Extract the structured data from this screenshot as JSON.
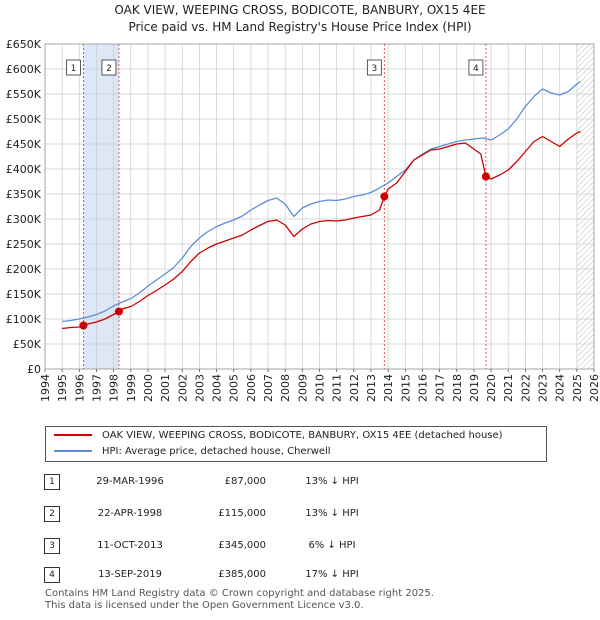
{
  "header": {
    "title_line1": "OAK VIEW, WEEPING CROSS, BODICOTE, BANBURY, OX15 4EE",
    "title_line2": "Price paid vs. HM Land Registry's House Price Index (HPI)"
  },
  "colors": {
    "property": "#cc0000",
    "hpi": "#5b8ed6",
    "band": "#dde7f7",
    "grid": "#cccccc"
  },
  "chart_data": {
    "type": "line",
    "title": "Price paid vs. HM Land Registry's House Price Index (HPI)",
    "xlabel": "",
    "ylabel": "",
    "xlim": [
      1994,
      2026
    ],
    "ylim": [
      0,
      650000
    ],
    "y_ticks": [
      0,
      50000,
      100000,
      150000,
      200000,
      250000,
      300000,
      350000,
      400000,
      450000,
      500000,
      550000,
      600000,
      650000
    ],
    "y_tick_labels": [
      "£0",
      "£50K",
      "£100K",
      "£150K",
      "£200K",
      "£250K",
      "£300K",
      "£350K",
      "£400K",
      "£450K",
      "£500K",
      "£550K",
      "£600K",
      "£650K"
    ],
    "x_ticks": [
      1994,
      1995,
      1996,
      1997,
      1998,
      1999,
      2000,
      2001,
      2002,
      2003,
      2004,
      2005,
      2006,
      2007,
      2008,
      2009,
      2010,
      2011,
      2012,
      2013,
      2014,
      2015,
      2016,
      2017,
      2018,
      2019,
      2020,
      2021,
      2022,
      2023,
      2024,
      2025,
      2026
    ],
    "x_tick_labels": [
      "1994",
      "1995",
      "1996",
      "1997",
      "1998",
      "1999",
      "2000",
      "2001",
      "2002",
      "2003",
      "2004",
      "2005",
      "2006",
      "2007",
      "2008",
      "2009",
      "2010",
      "2011",
      "2012",
      "2013",
      "2014",
      "2015",
      "2016",
      "2017",
      "2018",
      "2019",
      "2020",
      "2021",
      "2022",
      "2023",
      "2024",
      "2025",
      "2026"
    ],
    "grid": true,
    "shaded_ranges": [
      [
        1996.24,
        1998.31
      ]
    ],
    "future_hatch_from": 2025.0,
    "series": [
      {
        "name": "HPI: Average price, detached house, Cherwell",
        "x": [
          1995.0,
          1995.5,
          1996.0,
          1996.5,
          1997.0,
          1997.5,
          1998.0,
          1998.5,
          1999.0,
          1999.5,
          2000.0,
          2000.5,
          2001.0,
          2001.5,
          2002.0,
          2002.5,
          2003.0,
          2003.5,
          2004.0,
          2004.5,
          2005.0,
          2005.5,
          2006.0,
          2006.5,
          2007.0,
          2007.5,
          2008.0,
          2008.5,
          2009.0,
          2009.5,
          2010.0,
          2010.5,
          2011.0,
          2011.5,
          2012.0,
          2012.5,
          2013.0,
          2013.5,
          2014.0,
          2014.5,
          2015.0,
          2015.5,
          2016.0,
          2016.5,
          2017.0,
          2017.5,
          2018.0,
          2018.5,
          2019.0,
          2019.5,
          2020.0,
          2020.5,
          2021.0,
          2021.5,
          2022.0,
          2022.5,
          2023.0,
          2023.5,
          2024.0,
          2024.5,
          2025.0,
          2025.2
        ],
        "values": [
          95000,
          97000,
          100000,
          104000,
          109000,
          116000,
          126000,
          134000,
          141000,
          152000,
          166000,
          178000,
          190000,
          203000,
          222000,
          245000,
          262000,
          275000,
          285000,
          292000,
          298000,
          306000,
          318000,
          328000,
          337000,
          342000,
          330000,
          305000,
          322000,
          330000,
          335000,
          338000,
          337000,
          340000,
          345000,
          348000,
          353000,
          362000,
          372000,
          385000,
          398000,
          418000,
          430000,
          440000,
          445000,
          450000,
          455000,
          458000,
          460000,
          462000,
          458000,
          468000,
          480000,
          500000,
          525000,
          545000,
          560000,
          552000,
          548000,
          555000,
          570000,
          575000
        ]
      },
      {
        "name": "OAK VIEW, WEEPING CROSS, BODICOTE, BANBURY, OX15 4EE (detached house)",
        "x": [
          1995.0,
          1995.5,
          1996.0,
          1996.24,
          1996.5,
          1997.0,
          1997.5,
          1998.0,
          1998.31,
          1998.5,
          1999.0,
          1999.5,
          2000.0,
          2000.5,
          2001.0,
          2001.5,
          2002.0,
          2002.5,
          2003.0,
          2003.5,
          2004.0,
          2004.5,
          2005.0,
          2005.5,
          2006.0,
          2006.5,
          2007.0,
          2007.5,
          2008.0,
          2008.5,
          2009.0,
          2009.5,
          2010.0,
          2010.5,
          2011.0,
          2011.5,
          2012.0,
          2012.5,
          2013.0,
          2013.5,
          2013.78,
          2014.0,
          2014.5,
          2015.0,
          2015.5,
          2016.0,
          2016.5,
          2017.0,
          2017.5,
          2018.0,
          2018.5,
          2019.0,
          2019.4,
          2019.7,
          2020.0,
          2020.5,
          2021.0,
          2021.5,
          2022.0,
          2022.5,
          2023.0,
          2023.5,
          2024.0,
          2024.5,
          2025.0,
          2025.2
        ],
        "values": [
          81000,
          83000,
          84000,
          87000,
          90000,
          94000,
          100000,
          109000,
          115000,
          120000,
          125000,
          135000,
          147000,
          157000,
          168000,
          180000,
          195000,
          215000,
          232000,
          242000,
          250000,
          256000,
          262000,
          268000,
          278000,
          287000,
          295000,
          298000,
          288000,
          265000,
          280000,
          290000,
          295000,
          297000,
          296000,
          298000,
          302000,
          305000,
          308000,
          318000,
          345000,
          360000,
          372000,
          395000,
          418000,
          428000,
          438000,
          440000,
          445000,
          450000,
          452000,
          440000,
          430000,
          385000,
          380000,
          388000,
          398000,
          415000,
          435000,
          455000,
          465000,
          455000,
          445000,
          460000,
          472000,
          475000
        ]
      }
    ],
    "sales": [
      {
        "num": "1",
        "x": 1996.24,
        "value": 87000
      },
      {
        "num": "2",
        "x": 1998.31,
        "value": 115000
      },
      {
        "num": "3",
        "x": 2013.78,
        "value": 345000
      },
      {
        "num": "4",
        "x": 2019.7,
        "value": 385000
      }
    ],
    "legend": {
      "property": "OAK VIEW, WEEPING CROSS, BODICOTE, BANBURY, OX15 4EE (detached house)",
      "hpi": "HPI: Average price, detached house, Cherwell"
    }
  },
  "transactions": [
    {
      "num": "1",
      "date": "29-MAR-1996",
      "price": "£87,000",
      "delta": "13% ↓ HPI"
    },
    {
      "num": "2",
      "date": "22-APR-1998",
      "price": "£115,000",
      "delta": "13% ↓ HPI"
    },
    {
      "num": "3",
      "date": "11-OCT-2013",
      "price": "£345,000",
      "delta": "6% ↓ HPI"
    },
    {
      "num": "4",
      "date": "13-SEP-2019",
      "price": "£385,000",
      "delta": "17% ↓ HPI"
    }
  ],
  "footer": {
    "line1": "Contains HM Land Registry data © Crown copyright and database right 2025.",
    "line2": "This data is licensed under the Open Government Licence v3.0."
  }
}
